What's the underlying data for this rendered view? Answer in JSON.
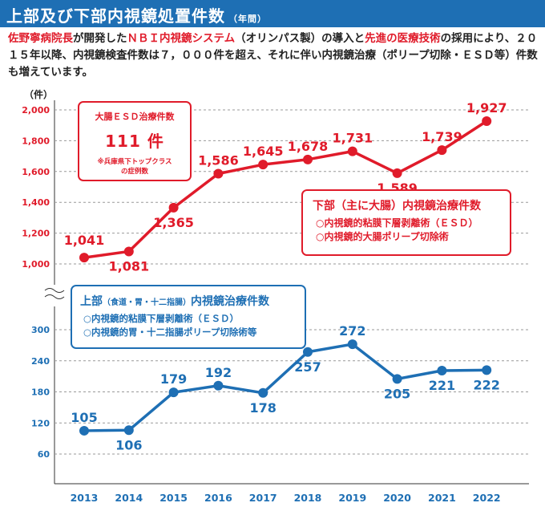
{
  "header": {
    "title": "上部及び下部内視鏡処置件数",
    "subtitle": "（年間）"
  },
  "description": {
    "part1": "佐野寧病院長",
    "part2": "が開発した",
    "part3": "ＮＢＩ内視鏡システム",
    "part4": "（オリンパス製）の導入と",
    "part5": "先進の医療技術",
    "part6": "の採用により、２０１５年以降、内視鏡検査件数は７，０００件を超え、それに伴い内視鏡治療（ポリープ切除・ＥＳＤ等）件数も増えています。"
  },
  "esd_box": {
    "label": "大腸ＥＳＤ治療件数",
    "value": "111 件",
    "note1": "※兵庫県下トップクラス",
    "note2": "の症例数"
  },
  "legend_lower": {
    "title": "下部（主に大腸）内視鏡治療件数",
    "item1": "○内視鏡的粘膜下層剥離術（ＥＳＤ）",
    "item2": "○内視鏡的大腸ポリープ切除術"
  },
  "legend_upper": {
    "title_a": "上部",
    "title_b": "（食道・胃・十二指腸）",
    "title_c": "内視鏡治療件数",
    "item1": "○内視鏡的粘膜下層剥離術（ＥＳＤ）",
    "item2": "○内視鏡的胃・十二指腸ポリープ切除術等"
  },
  "colors": {
    "red": "#e01b2a",
    "blue": "#1e6fb4"
  },
  "chart_data": {
    "type": "line",
    "ylabel": "（件）",
    "categories": [
      "2013",
      "2014",
      "2015",
      "2016",
      "2017",
      "2018",
      "2019",
      "2020",
      "2021",
      "2022"
    ],
    "series": [
      {
        "color": "#e01b2a",
        "values": [
          1041,
          1081,
          1365,
          1586,
          1645,
          1678,
          1731,
          1589,
          1739,
          1927
        ],
        "labels": [
          "1,041",
          "1,081",
          "1,365",
          "1,586",
          "1,645",
          "1,678",
          "1,731",
          "1,589",
          "1,739",
          "1,927"
        ],
        "ylim": [
          1000,
          2000
        ],
        "ticks": [
          "1,000",
          "1,200",
          "1,400",
          "1,600",
          "1,800",
          "2,000"
        ]
      },
      {
        "color": "#1e6fb4",
        "values": [
          105,
          106,
          179,
          192,
          178,
          257,
          272,
          205,
          221,
          222
        ],
        "labels": [
          "105",
          "106",
          "179",
          "192",
          "178",
          "257",
          "272",
          "205",
          "221",
          "222"
        ],
        "ylim": [
          60,
          300
        ],
        "ticks": [
          "60",
          "120",
          "180",
          "240",
          "300"
        ]
      }
    ],
    "axis_break": true,
    "grid": true
  }
}
